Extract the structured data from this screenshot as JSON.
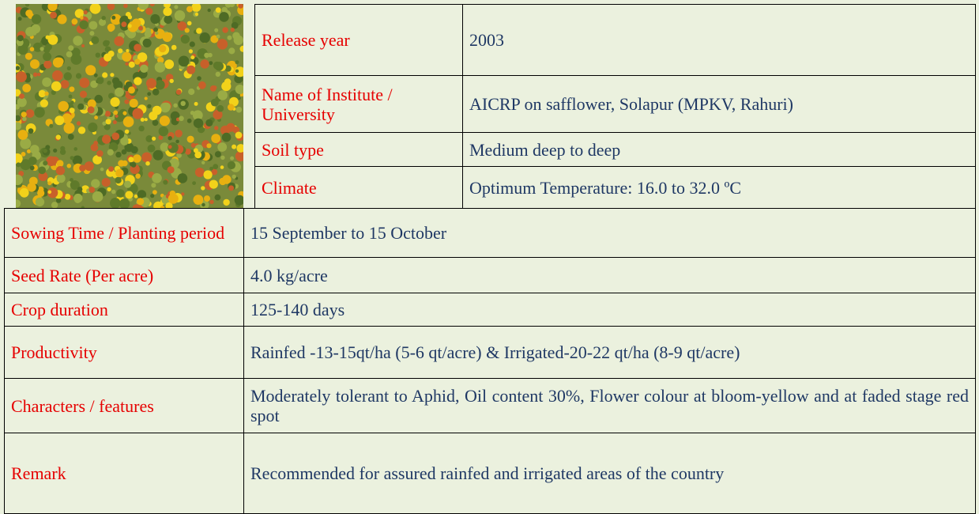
{
  "top_table": {
    "rows": [
      [
        "Release year",
        "2003"
      ],
      [
        "Name of Institute / University",
        "AICRP on safflower, Solapur (MPKV, Rahuri)"
      ],
      [
        "Soil type",
        "Medium deep to deep"
      ],
      [
        "Climate",
        "Optimum Temperature: 16.0 to 32.0 ºC"
      ]
    ]
  },
  "bottom_table": {
    "rows": [
      [
        "Sowing Time / Planting period",
        "15 September to 15 October"
      ],
      [
        "Seed Rate (Per acre)",
        "4.0 kg/acre"
      ],
      [
        "Crop duration",
        "125-140 days"
      ],
      [
        "Productivity",
        "Rainfed -13-15qt/ha (5-6 qt/acre) & Irrigated-20-22 qt/ha (8-9 qt/acre)"
      ],
      [
        "Characters / features",
        "Moderately tolerant to Aphid, Oil content 30%, Flower colour at bloom-yellow and at faded stage red spot"
      ],
      [
        "Remark",
        "Recommended for assured rainfed and irrigated areas of the country"
      ]
    ]
  }
}
